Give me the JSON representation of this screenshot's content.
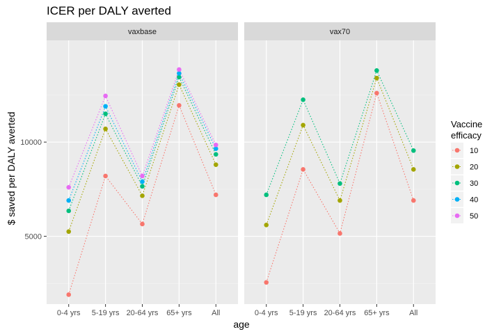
{
  "chart_data": {
    "type": "line",
    "title": "ICER per DALY averted",
    "xlabel": "age",
    "ylabel": "$ saved per DALY averted",
    "categories": [
      "0-4 yrs",
      "5-19 yrs",
      "20-64 yrs",
      "65+ yrs",
      "All"
    ],
    "ylim": [
      1400,
      15400
    ],
    "yticks": [
      5000,
      10000
    ],
    "grid": true,
    "line_style": "dotted",
    "legend": {
      "title": "Vaccine efficacy",
      "position": "right",
      "entries": [
        "10",
        "20",
        "30",
        "40",
        "50"
      ]
    },
    "colors": {
      "10": "#F8766D",
      "20": "#A3A500",
      "30": "#00BF7D",
      "40": "#00B0F6",
      "50": "#E76BF3"
    },
    "panels": [
      {
        "name": "vaxbase",
        "series": [
          {
            "name": "10",
            "values": [
              1900,
              8200,
              5650,
              11950,
              7200
            ]
          },
          {
            "name": "20",
            "values": [
              5250,
              10700,
              7150,
              13050,
              8800
            ]
          },
          {
            "name": "30",
            "values": [
              6350,
              11500,
              7650,
              13450,
              9350
            ]
          },
          {
            "name": "40",
            "values": [
              6900,
              11900,
              7900,
              13650,
              9650
            ]
          },
          {
            "name": "50",
            "values": [
              7600,
              12450,
              8200,
              13850,
              9850
            ]
          }
        ]
      },
      {
        "name": "vax70",
        "series": [
          {
            "name": "10",
            "values": [
              2550,
              8550,
              5150,
              12600,
              6900
            ]
          },
          {
            "name": "20",
            "values": [
              5600,
              10900,
              6900,
              13400,
              8550
            ]
          },
          {
            "name": "30",
            "values": [
              7200,
              12250,
              7800,
              13800,
              9550
            ]
          }
        ]
      }
    ]
  }
}
